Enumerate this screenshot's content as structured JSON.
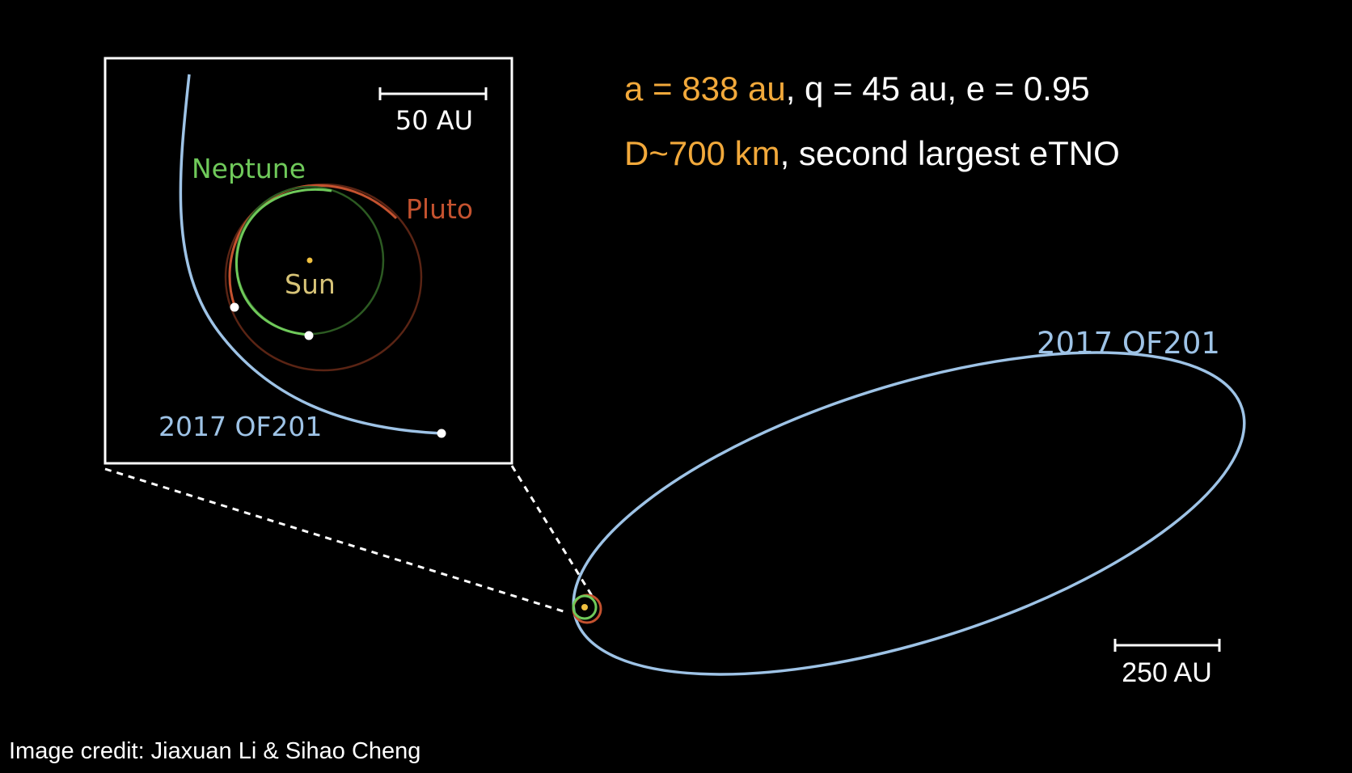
{
  "colors": {
    "background": "#000000",
    "orbit_2017OF201": "#9ec3e6",
    "neptune": "#6fc95a",
    "pluto": "#c4522f",
    "sun": "#f0c040",
    "highlight_orange": "#f2a93b",
    "white": "#ffffff"
  },
  "inset": {
    "scale_label": "50 AU",
    "neptune_label": "Neptune",
    "pluto_label": "Pluto",
    "sun_label": "Sun",
    "object_label": "2017 OF201"
  },
  "main": {
    "object_label": "2017 OF201",
    "scale_label": "250 AU"
  },
  "parameters": {
    "line1_highlight": "a = 838 au",
    "line1_rest": ",  q = 45 au, e = 0.95",
    "line2_highlight": "D~700 km",
    "line2_rest": ", second largest eTNO"
  },
  "credit": "Image credit: Jiaxuan Li & Sihao Cheng"
}
